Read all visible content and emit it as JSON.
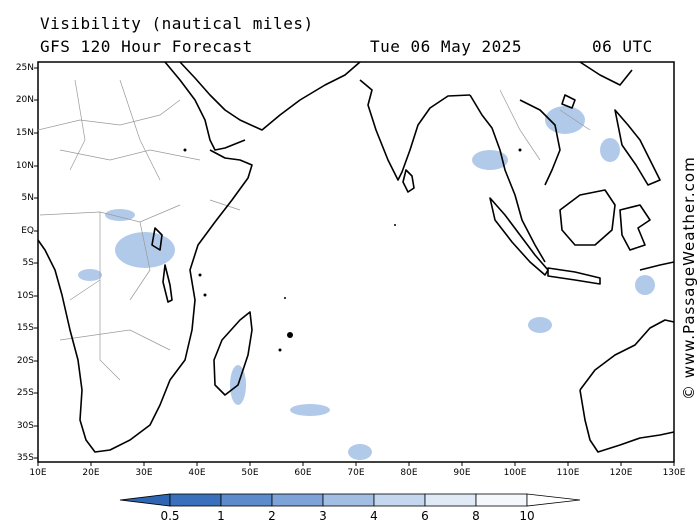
{
  "header": {
    "title": "Visibility (nautical miles)",
    "subtitle": "GFS 120 Hour Forecast",
    "datetime": "Tue 06 May 2025",
    "utc": "06 UTC"
  },
  "map": {
    "lat_labels": [
      "25N",
      "20N",
      "15N",
      "10N",
      "5N",
      "EQ",
      "5S",
      "10S",
      "15S",
      "20S",
      "25S",
      "30S",
      "35S"
    ],
    "lon_labels": [
      "10E",
      "20E",
      "30E",
      "40E",
      "50E",
      "60E",
      "70E",
      "80E",
      "90E",
      "100E",
      "110E",
      "120E",
      "130E"
    ],
    "extent": {
      "lon_min": 10,
      "lon_max": 130,
      "lat_min": -36,
      "lat_max": 26
    },
    "colors": {
      "land_border": "#000000",
      "country_border": "#999999",
      "haze": "#7fa6d9"
    }
  },
  "legend": {
    "values": [
      "0.5",
      "1",
      "2",
      "3",
      "4",
      "6",
      "8",
      "10"
    ],
    "colors": [
      "#2f66b3",
      "#4a7fc4",
      "#6f99d1",
      "#95b4de",
      "#b8cdea",
      "#d8e3f3",
      "#eef3fa",
      "#ffffff"
    ]
  },
  "credit": "© www.PassageWeather.com"
}
